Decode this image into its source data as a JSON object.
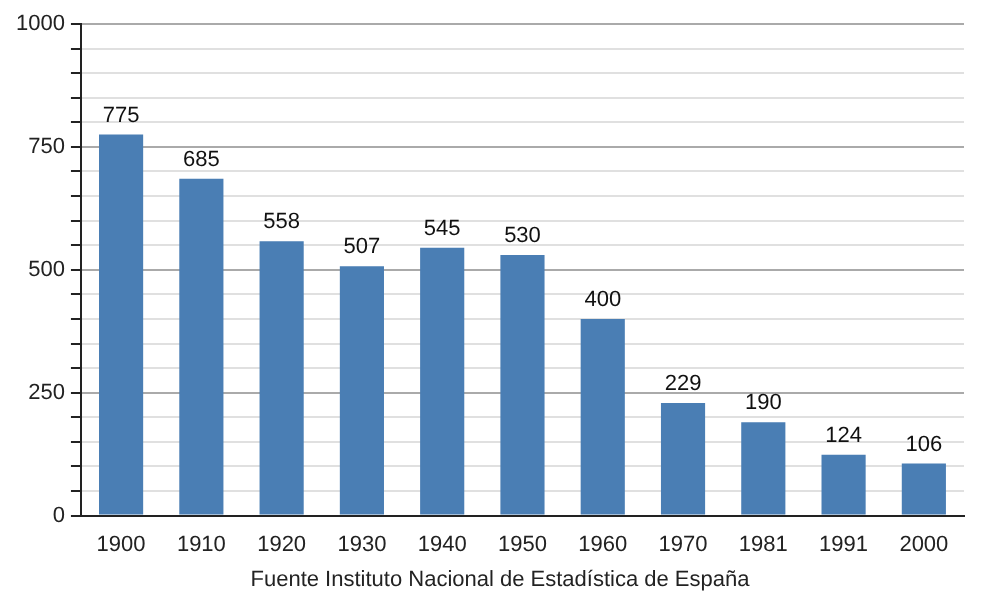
{
  "chart_data": {
    "type": "bar",
    "categories": [
      "1900",
      "1910",
      "1920",
      "1930",
      "1940",
      "1950",
      "1960",
      "1970",
      "1981",
      "1991",
      "2000"
    ],
    "values": [
      775,
      685,
      558,
      507,
      545,
      530,
      400,
      229,
      190,
      124,
      106
    ],
    "color": "#4a7eb4",
    "data_labels": true,
    "grid": true,
    "legend": false,
    "ylim": [
      0,
      1000
    ],
    "yticks": [
      0,
      {
        "value": 50,
        "label": null
      },
      {
        "value": 100,
        "label": null
      },
      {
        "value": 150,
        "label": null
      },
      {
        "value": 200,
        "label": null
      },
      250,
      {
        "value": 300,
        "label": null
      },
      {
        "value": 350,
        "label": null
      },
      {
        "value": 400,
        "label": null
      },
      {
        "value": 450,
        "label": null
      },
      500,
      {
        "value": 550,
        "label": null
      },
      {
        "value": 600,
        "label": null
      },
      {
        "value": 650,
        "label": null
      },
      {
        "value": 700,
        "label": null
      },
      750,
      {
        "value": 800,
        "label": null
      },
      {
        "value": 850,
        "label": null
      },
      {
        "value": 900,
        "label": null
      },
      {
        "value": 950,
        "label": null
      },
      1000
    ],
    "annotations": [
      "Fuente Instituto Nacional de Estadística de España"
    ]
  }
}
